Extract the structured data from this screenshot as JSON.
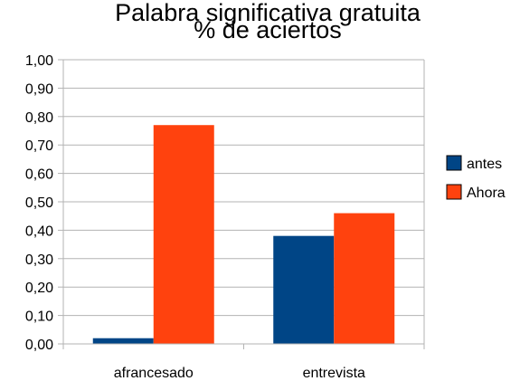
{
  "chart_data": {
    "type": "bar",
    "title_line1": "Palabra significativa gratuita",
    "title_line2": "% de aciertos",
    "categories": [
      "afrancesado",
      "entrevista"
    ],
    "series": [
      {
        "name": "antes",
        "values": [
          0.02,
          0.38
        ],
        "color": "#004586"
      },
      {
        "name": "Ahora",
        "values": [
          0.77,
          0.46
        ],
        "color": "#ff420e"
      }
    ],
    "ylim": [
      0,
      1
    ],
    "yticks": [
      "0,00",
      "0,10",
      "0,20",
      "0,30",
      "0,40",
      "0,50",
      "0,60",
      "0,70",
      "0,80",
      "0,90",
      "1,00"
    ],
    "grid": true,
    "legend_position": "right"
  }
}
